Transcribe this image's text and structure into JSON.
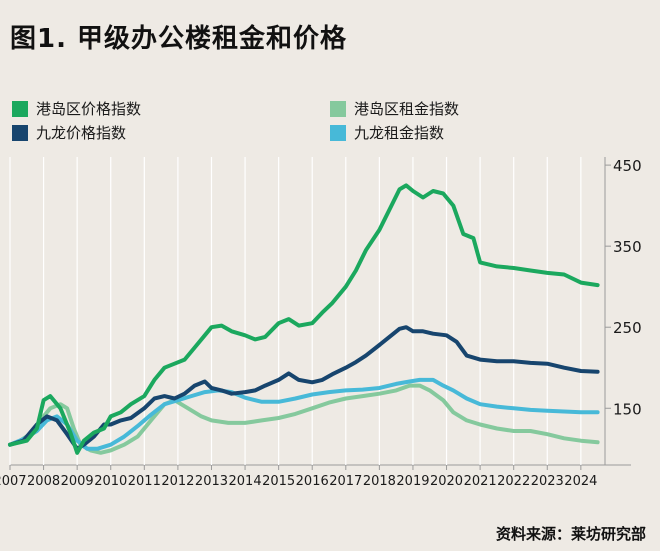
{
  "title": "图1. 甲级办公楼租金和价格",
  "source": "资料来源：莱坊研究部",
  "chart_data": {
    "type": "line",
    "x_tick_labels": [
      "2007",
      "2008",
      "2009",
      "2010",
      "2011",
      "2012",
      "2013",
      "2014",
      "2015",
      "2016",
      "2017",
      "2018",
      "2019",
      "2020",
      "2021",
      "2022",
      "2023",
      "2024"
    ],
    "y_tick_labels": [
      "450",
      "350",
      "250",
      "150"
    ],
    "ylim": [
      80,
      460
    ],
    "xlim": [
      2007.0,
      2024.6
    ],
    "grid": "vertical",
    "legend_position": "top-left",
    "series": [
      {
        "name": "港岛区价格指数",
        "color": "#1ba85e",
        "points": [
          [
            2007.0,
            105
          ],
          [
            2007.5,
            110
          ],
          [
            2007.8,
            125
          ],
          [
            2008.0,
            160
          ],
          [
            2008.2,
            165
          ],
          [
            2008.5,
            150
          ],
          [
            2008.8,
            120
          ],
          [
            2009.0,
            95
          ],
          [
            2009.2,
            110
          ],
          [
            2009.5,
            120
          ],
          [
            2009.8,
            125
          ],
          [
            2010.0,
            140
          ],
          [
            2010.3,
            145
          ],
          [
            2010.6,
            155
          ],
          [
            2011.0,
            165
          ],
          [
            2011.3,
            185
          ],
          [
            2011.6,
            200
          ],
          [
            2011.9,
            205
          ],
          [
            2012.2,
            210
          ],
          [
            2012.5,
            225
          ],
          [
            2012.8,
            240
          ],
          [
            2013.0,
            250
          ],
          [
            2013.3,
            252
          ],
          [
            2013.6,
            245
          ],
          [
            2014.0,
            240
          ],
          [
            2014.3,
            235
          ],
          [
            2014.6,
            238
          ],
          [
            2015.0,
            255
          ],
          [
            2015.3,
            260
          ],
          [
            2015.6,
            252
          ],
          [
            2016.0,
            255
          ],
          [
            2016.3,
            268
          ],
          [
            2016.6,
            280
          ],
          [
            2017.0,
            300
          ],
          [
            2017.3,
            320
          ],
          [
            2017.6,
            345
          ],
          [
            2018.0,
            370
          ],
          [
            2018.3,
            395
          ],
          [
            2018.6,
            420
          ],
          [
            2018.8,
            425
          ],
          [
            2019.0,
            418
          ],
          [
            2019.3,
            410
          ],
          [
            2019.6,
            418
          ],
          [
            2019.9,
            415
          ],
          [
            2020.2,
            400
          ],
          [
            2020.5,
            365
          ],
          [
            2020.8,
            360
          ],
          [
            2021.0,
            330
          ],
          [
            2021.5,
            325
          ],
          [
            2022.0,
            323
          ],
          [
            2022.5,
            320
          ],
          [
            2023.0,
            317
          ],
          [
            2023.5,
            315
          ],
          [
            2024.0,
            305
          ],
          [
            2024.5,
            302
          ]
        ]
      },
      {
        "name": "港岛区租金指数",
        "color": "#85c99d",
        "points": [
          [
            2007.0,
            105
          ],
          [
            2007.3,
            110
          ],
          [
            2007.6,
            118
          ],
          [
            2007.9,
            135
          ],
          [
            2008.2,
            150
          ],
          [
            2008.5,
            155
          ],
          [
            2008.7,
            150
          ],
          [
            2008.9,
            125
          ],
          [
            2009.1,
            105
          ],
          [
            2009.4,
            98
          ],
          [
            2009.7,
            95
          ],
          [
            2010.0,
            98
          ],
          [
            2010.4,
            105
          ],
          [
            2010.8,
            115
          ],
          [
            2011.2,
            135
          ],
          [
            2011.6,
            155
          ],
          [
            2011.9,
            160
          ],
          [
            2012.3,
            150
          ],
          [
            2012.7,
            140
          ],
          [
            2013.0,
            135
          ],
          [
            2013.5,
            132
          ],
          [
            2014.0,
            132
          ],
          [
            2014.5,
            135
          ],
          [
            2015.0,
            138
          ],
          [
            2015.5,
            143
          ],
          [
            2016.0,
            150
          ],
          [
            2016.5,
            157
          ],
          [
            2017.0,
            162
          ],
          [
            2017.5,
            165
          ],
          [
            2018.0,
            168
          ],
          [
            2018.5,
            172
          ],
          [
            2018.9,
            178
          ],
          [
            2019.2,
            178
          ],
          [
            2019.5,
            172
          ],
          [
            2019.9,
            160
          ],
          [
            2020.2,
            145
          ],
          [
            2020.6,
            135
          ],
          [
            2021.0,
            130
          ],
          [
            2021.5,
            125
          ],
          [
            2022.0,
            122
          ],
          [
            2022.5,
            122
          ],
          [
            2023.0,
            118
          ],
          [
            2023.5,
            113
          ],
          [
            2024.0,
            110
          ],
          [
            2024.5,
            108
          ]
        ]
      },
      {
        "name": "九龙价格指数",
        "color": "#17456e",
        "points": [
          [
            2007.0,
            105
          ],
          [
            2007.4,
            110
          ],
          [
            2007.8,
            130
          ],
          [
            2008.1,
            140
          ],
          [
            2008.4,
            135
          ],
          [
            2008.7,
            118
          ],
          [
            2009.0,
            100
          ],
          [
            2009.2,
            105
          ],
          [
            2009.5,
            115
          ],
          [
            2009.8,
            130
          ],
          [
            2010.0,
            130
          ],
          [
            2010.3,
            135
          ],
          [
            2010.6,
            138
          ],
          [
            2011.0,
            150
          ],
          [
            2011.3,
            162
          ],
          [
            2011.6,
            165
          ],
          [
            2011.9,
            162
          ],
          [
            2012.2,
            168
          ],
          [
            2012.5,
            178
          ],
          [
            2012.8,
            183
          ],
          [
            2013.0,
            175
          ],
          [
            2013.3,
            172
          ],
          [
            2013.6,
            168
          ],
          [
            2014.0,
            170
          ],
          [
            2014.3,
            172
          ],
          [
            2014.6,
            178
          ],
          [
            2015.0,
            185
          ],
          [
            2015.3,
            193
          ],
          [
            2015.6,
            185
          ],
          [
            2016.0,
            182
          ],
          [
            2016.3,
            185
          ],
          [
            2016.6,
            192
          ],
          [
            2017.0,
            200
          ],
          [
            2017.3,
            207
          ],
          [
            2017.6,
            215
          ],
          [
            2018.0,
            228
          ],
          [
            2018.3,
            238
          ],
          [
            2018.6,
            248
          ],
          [
            2018.8,
            250
          ],
          [
            2019.0,
            245
          ],
          [
            2019.3,
            245
          ],
          [
            2019.6,
            242
          ],
          [
            2020.0,
            240
          ],
          [
            2020.3,
            232
          ],
          [
            2020.6,
            215
          ],
          [
            2021.0,
            210
          ],
          [
            2021.5,
            208
          ],
          [
            2022.0,
            208
          ],
          [
            2022.5,
            206
          ],
          [
            2023.0,
            205
          ],
          [
            2023.5,
            200
          ],
          [
            2024.0,
            196
          ],
          [
            2024.5,
            195
          ]
        ]
      },
      {
        "name": "九龙租金指数",
        "color": "#47b9d8",
        "points": [
          [
            2007.0,
            105
          ],
          [
            2007.4,
            112
          ],
          [
            2007.8,
            122
          ],
          [
            2008.1,
            135
          ],
          [
            2008.4,
            140
          ],
          [
            2008.7,
            130
          ],
          [
            2009.0,
            110
          ],
          [
            2009.3,
            100
          ],
          [
            2009.6,
            100
          ],
          [
            2010.0,
            105
          ],
          [
            2010.4,
            115
          ],
          [
            2010.8,
            128
          ],
          [
            2011.2,
            142
          ],
          [
            2011.6,
            155
          ],
          [
            2012.0,
            160
          ],
          [
            2012.4,
            165
          ],
          [
            2012.8,
            170
          ],
          [
            2013.2,
            172
          ],
          [
            2013.6,
            170
          ],
          [
            2014.0,
            163
          ],
          [
            2014.5,
            158
          ],
          [
            2015.0,
            158
          ],
          [
            2015.5,
            162
          ],
          [
            2016.0,
            167
          ],
          [
            2016.5,
            170
          ],
          [
            2017.0,
            172
          ],
          [
            2017.5,
            173
          ],
          [
            2018.0,
            175
          ],
          [
            2018.5,
            180
          ],
          [
            2018.9,
            183
          ],
          [
            2019.2,
            185
          ],
          [
            2019.6,
            185
          ],
          [
            2019.9,
            178
          ],
          [
            2020.2,
            172
          ],
          [
            2020.6,
            162
          ],
          [
            2021.0,
            155
          ],
          [
            2021.5,
            152
          ],
          [
            2022.0,
            150
          ],
          [
            2022.5,
            148
          ],
          [
            2023.0,
            147
          ],
          [
            2023.5,
            146
          ],
          [
            2024.0,
            145
          ],
          [
            2024.5,
            145
          ]
        ]
      }
    ]
  }
}
